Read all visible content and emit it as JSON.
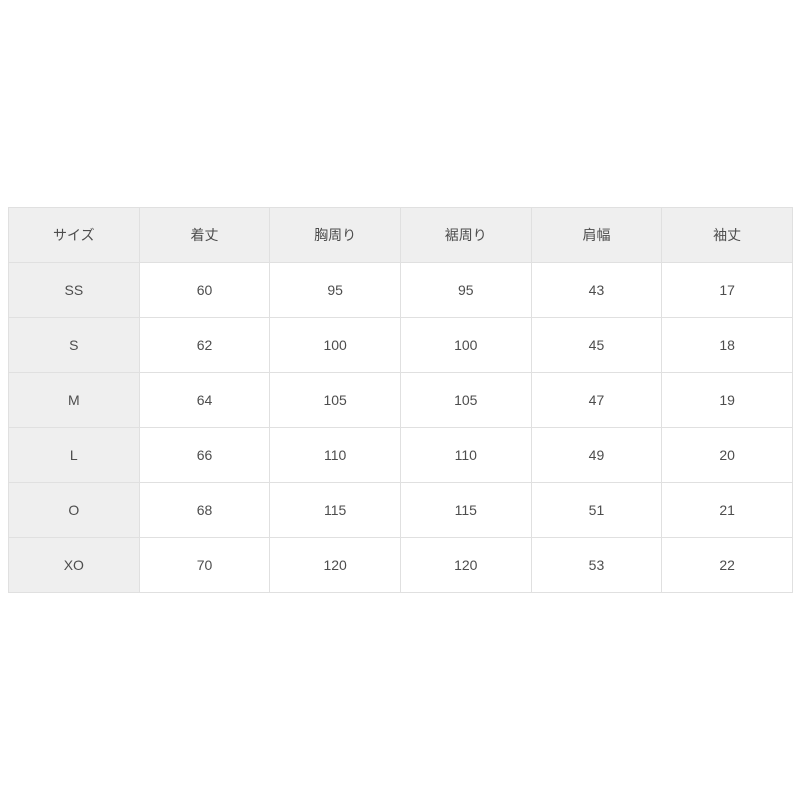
{
  "colors": {
    "page_bg": "#ffffff",
    "header_bg": "#efefef",
    "label_col_bg": "#efefef",
    "cell_bg": "#ffffff",
    "border": "#e0e0e0",
    "text": "#4d4d4d"
  },
  "chart_data": {
    "type": "table",
    "columns": [
      "サイズ",
      "着丈",
      "胸周り",
      "裾周り",
      "肩幅",
      "袖丈"
    ],
    "rows": [
      [
        "SS",
        "60",
        "95",
        "95",
        "43",
        "17"
      ],
      [
        "S",
        "62",
        "100",
        "100",
        "45",
        "18"
      ],
      [
        "M",
        "64",
        "105",
        "105",
        "47",
        "19"
      ],
      [
        "L",
        "66",
        "110",
        "110",
        "49",
        "20"
      ],
      [
        "O",
        "68",
        "115",
        "115",
        "51",
        "21"
      ],
      [
        "XO",
        "70",
        "120",
        "120",
        "53",
        "22"
      ]
    ]
  }
}
